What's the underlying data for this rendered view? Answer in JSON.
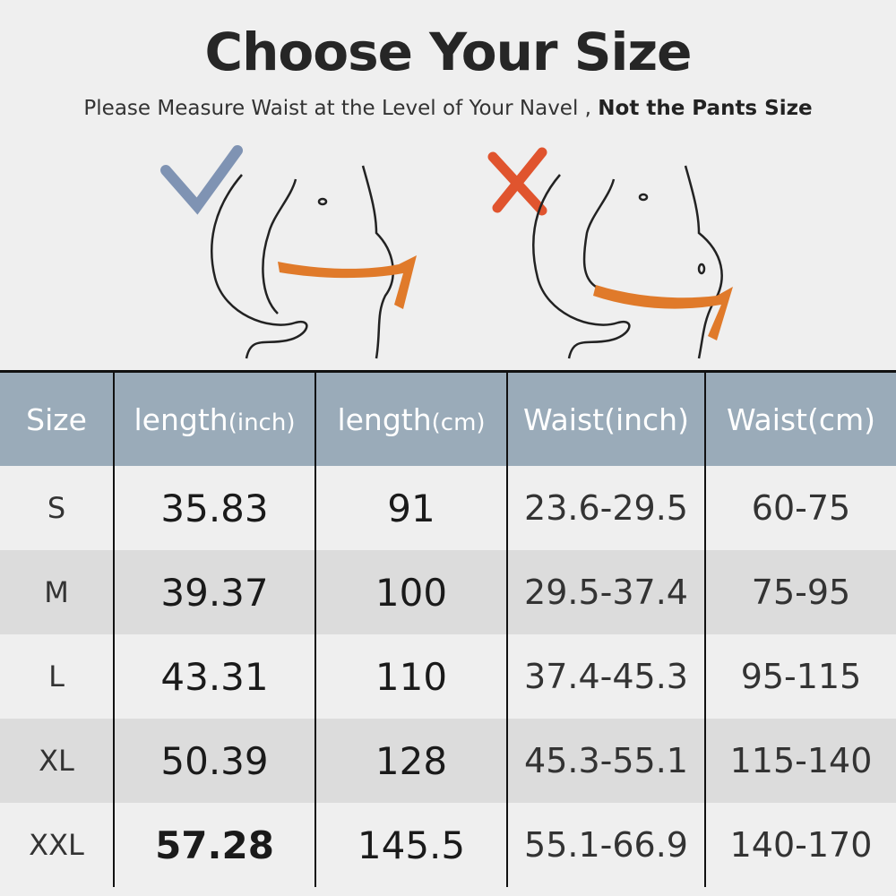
{
  "title": "Choose Your Size",
  "subtitle": {
    "text": "Please Measure Waist at the Level of Your Navel ,",
    "emphasis": "Not the Pants Size"
  },
  "illustrations": [
    {
      "icon": "check-mark-icon",
      "color": "#7f93b3",
      "meaning": "correct"
    },
    {
      "icon": "x-mark-icon",
      "color": "#e0542e",
      "meaning": "incorrect"
    }
  ],
  "colors": {
    "header_bg": "#9aabb9",
    "tape": "#e07a2a"
  },
  "table": {
    "headers": [
      {
        "main": "Size",
        "unit": ""
      },
      {
        "main": "length",
        "unit": "(inch)"
      },
      {
        "main": "length",
        "unit": "(cm)"
      },
      {
        "main": "Waist(inch)",
        "unit": ""
      },
      {
        "main": "Waist(cm)",
        "unit": ""
      }
    ],
    "rows": [
      [
        "S",
        "35.83",
        "91",
        "23.6-29.5",
        "60-75"
      ],
      [
        "M",
        "39.37",
        "100",
        "29.5-37.4",
        "75-95"
      ],
      [
        "L",
        "43.31",
        "110",
        "37.4-45.3",
        "95-115"
      ],
      [
        "XL",
        "50.39",
        "128",
        "45.3-55.1",
        "115-140"
      ],
      [
        "XXL",
        "57.28",
        "145.5",
        "55.1-66.9",
        "140-170"
      ]
    ]
  }
}
